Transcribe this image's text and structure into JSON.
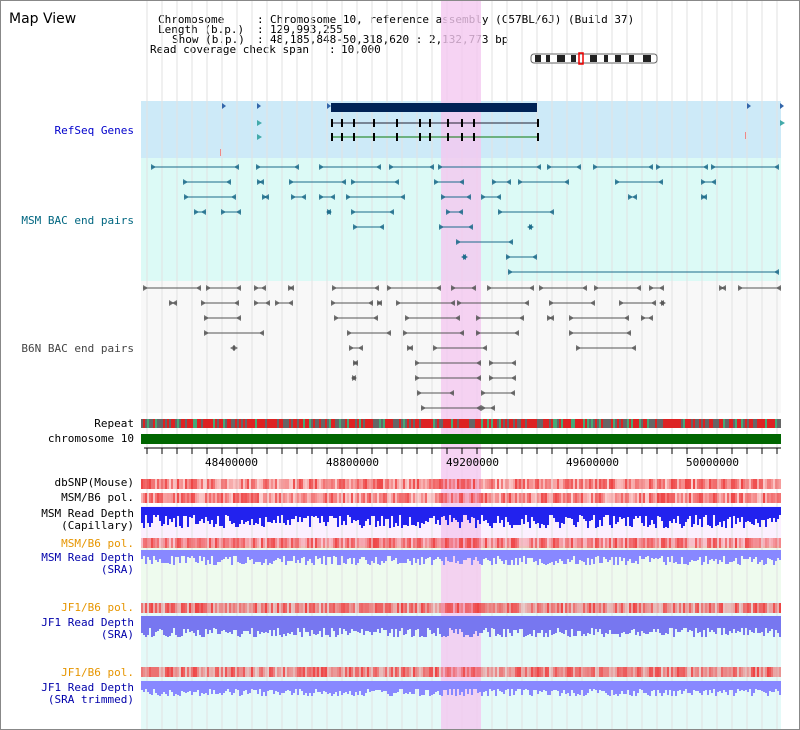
{
  "window": {
    "title": "Map View"
  },
  "info": {
    "chromosome_key": "Chromosome",
    "chromosome_value": "Chromosome 10, reference assembly (C57BL/6J) (Build 37)",
    "length_key": "Length (b.p.)",
    "length_value": "129,993,255",
    "show_key": "Show (b.p.)",
    "show_value": "48,185,848-50,318,620 : 2,132,773 bp",
    "span_key": "Read coverage check span",
    "span_value": "10,000"
  },
  "tracks": {
    "refseq": "RefSeq Genes",
    "msm_bac": "MSM BAC end pairs",
    "b6n_bac": "B6N BAC end pairs",
    "repeat": "Repeat",
    "chromosome": "chromosome 10",
    "dbsnp": "dbSNP(Mouse)",
    "msm_b6_pol": "MSM/B6 pol.",
    "msm_depth_cap_1": "MSM Read Depth",
    "msm_depth_cap_2": "(Capillary)",
    "msm_b6_pol_2": "MSM/B6 pol.",
    "msm_depth_sra_1": "MSM Read Depth",
    "msm_depth_sra_2": "(SRA)",
    "jf1_b6_pol": "JF1/B6 pol.",
    "jf1_depth_sra_1": "JF1 Read Depth",
    "jf1_depth_sra_2": "(SRA)",
    "jf1_b6_pol_2": "JF1/B6 pol.",
    "jf1_depth_trim_1": "JF1 Read Depth",
    "jf1_depth_trim_2": "(SRA trimmed)"
  },
  "axis": {
    "ticks": [
      "48400000",
      "48800000",
      "49200000",
      "49600000",
      "50000000"
    ]
  },
  "colors": {
    "highlight": "#f4c8f0",
    "refseq_bg": "#cdeaf8",
    "msm_bg": "#dcfaf6",
    "gene": "#002255",
    "chromosome": "#006600",
    "depth_blue": "#2222ee",
    "depth_light": "#8888ff",
    "pol_red": "#ee4444"
  }
}
